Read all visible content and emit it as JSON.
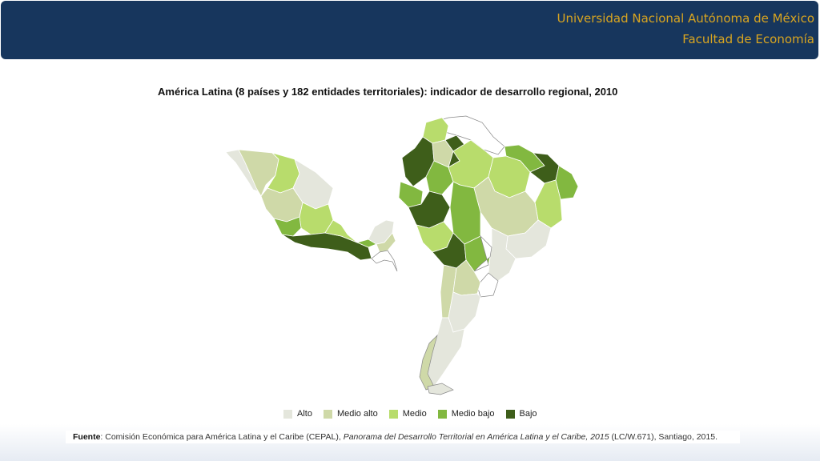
{
  "header": {
    "institution": "Universidad Nacional Autónoma de México",
    "faculty": "Facultad de Economía"
  },
  "map": {
    "title": "América Latina (8 países y 182 entidades territoriales): indicador de desarrollo regional, 2010",
    "legend": [
      {
        "label": "Alto",
        "color": "#e4e6dc"
      },
      {
        "label": "Medio alto",
        "color": "#cfd9a8"
      },
      {
        "label": "Medio",
        "color": "#b8dc6c"
      },
      {
        "label": "Medio bajo",
        "color": "#82b840"
      },
      {
        "label": "Bajo",
        "color": "#3e5e1a"
      }
    ]
  },
  "source": {
    "label": "Fuente",
    "text_before": ": Comisión Económica para América Latina y el Caribe (CEPAL), ",
    "italic_title": "Panorama del Desarrollo Territorial en América Latina y el Caribe, 2015",
    "text_after": " (LC/W.671), Santiago, 2015."
  }
}
